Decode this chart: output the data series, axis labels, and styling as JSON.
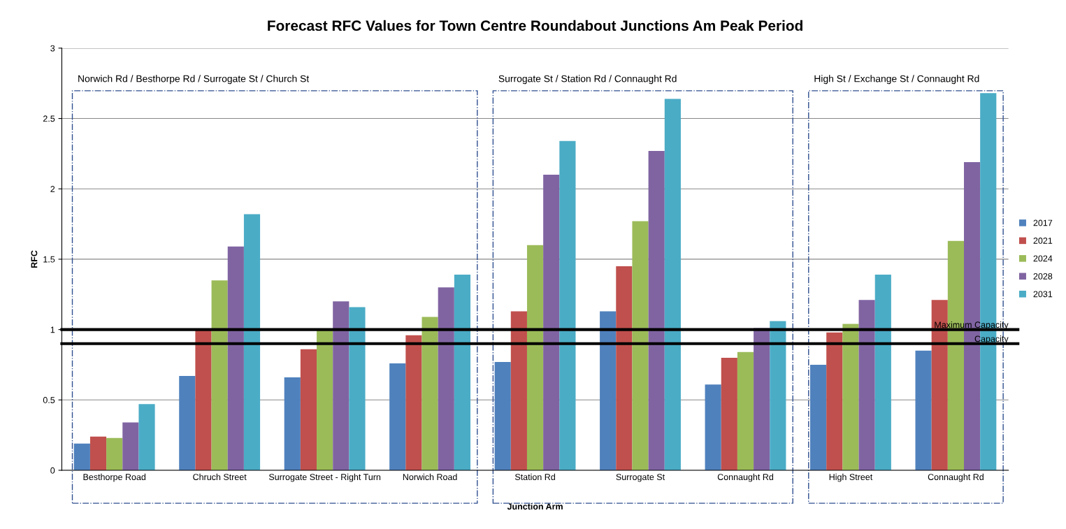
{
  "chart_data": {
    "type": "bar",
    "title": "Forecast RFC Values for Town Centre Roundabout Junctions Am Peak Period",
    "xlabel": "Junction Arm",
    "ylabel": "RFC",
    "categories": [
      "Besthorpe Road",
      "Chruch Street",
      "Surrogate Street - Right Turn",
      "Norwich Road",
      "Station Rd",
      "Surrogate St",
      "Connaught Rd",
      "High Street",
      "Connaught Rd"
    ],
    "series": [
      {
        "name": "2017",
        "color": "#4f81bd",
        "values": [
          0.19,
          0.67,
          0.66,
          0.76,
          0.77,
          1.13,
          0.61,
          0.75,
          0.85
        ]
      },
      {
        "name": "2021",
        "color": "#c0504d",
        "values": [
          0.24,
          1.0,
          0.86,
          0.96,
          1.13,
          1.45,
          0.8,
          0.98,
          1.21
        ]
      },
      {
        "name": "2024",
        "color": "#9bbb59",
        "values": [
          0.23,
          1.35,
          1.0,
          1.09,
          1.6,
          1.77,
          0.84,
          1.04,
          1.63
        ]
      },
      {
        "name": "2028",
        "color": "#8064a2",
        "values": [
          0.34,
          1.59,
          1.2,
          1.3,
          2.1,
          2.27,
          1.01,
          1.21,
          2.19
        ]
      },
      {
        "name": "2031",
        "color": "#4bacc6",
        "values": [
          0.47,
          1.82,
          1.16,
          1.39,
          2.34,
          2.64,
          1.06,
          1.39,
          2.68
        ]
      }
    ],
    "ylim": [
      0,
      3
    ],
    "yticks": [
      0,
      0.5,
      1,
      1.5,
      2,
      2.5,
      3
    ],
    "grid": "y",
    "legend": "right",
    "ref_lines": [
      {
        "axis": "y",
        "value": 1.0,
        "label": "Maximum Capacity",
        "color": "#000000"
      },
      {
        "axis": "y",
        "value": 0.9,
        "label": "Capacity",
        "color": "#000000"
      }
    ],
    "annotations": [
      "Norwich Rd / Besthorpe Rd / Surrogate St / Church St",
      "Surrogate St / Station Rd / Connaught Rd",
      "High St / Exchange St / Connaught Rd"
    ]
  }
}
